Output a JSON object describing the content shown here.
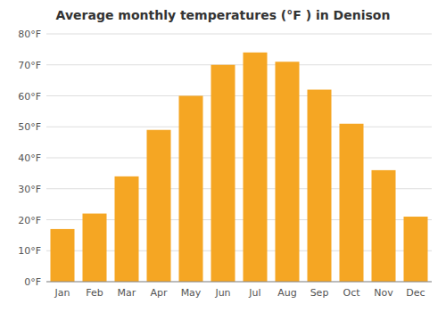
{
  "chart_data": {
    "type": "bar",
    "title": "Average monthly temperatures (°F ) in Denison",
    "categories": [
      "Jan",
      "Feb",
      "Mar",
      "Apr",
      "May",
      "Jun",
      "Jul",
      "Aug",
      "Sep",
      "Oct",
      "Nov",
      "Dec"
    ],
    "values": [
      17,
      22,
      34,
      49,
      60,
      70,
      74,
      71,
      62,
      51,
      36,
      21
    ],
    "color": "#F5A623",
    "ylim": [
      0,
      80
    ],
    "yticks": [
      {
        "value": 0,
        "label": "0°F"
      },
      {
        "value": 10,
        "label": "10°F"
      },
      {
        "value": 20,
        "label": "20°F"
      },
      {
        "value": 30,
        "label": "30°F"
      },
      {
        "value": 40,
        "label": "40°F"
      },
      {
        "value": 50,
        "label": "50°F"
      },
      {
        "value": 60,
        "label": "60°F"
      },
      {
        "value": 70,
        "label": "70°F"
      },
      {
        "value": 80,
        "label": "80°F"
      }
    ],
    "grid": true
  }
}
